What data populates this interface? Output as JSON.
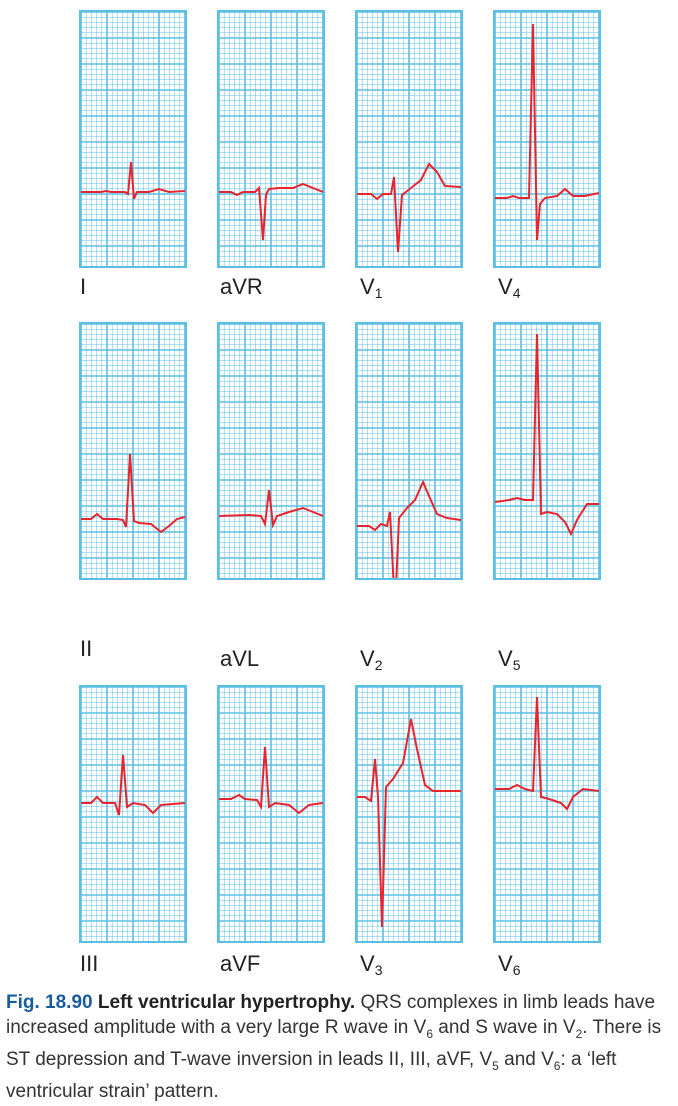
{
  "colors": {
    "grid": "#5bbfe3",
    "trace": "#e8242e",
    "figure_label": "#1a5c9e"
  },
  "leads": [
    {
      "id": "I",
      "label": "I",
      "sub": ""
    },
    {
      "id": "aVR",
      "label": "aVR",
      "sub": ""
    },
    {
      "id": "V1",
      "label": "V",
      "sub": "1"
    },
    {
      "id": "V4",
      "label": "V",
      "sub": "4"
    },
    {
      "id": "II",
      "label": "II",
      "sub": ""
    },
    {
      "id": "aVL",
      "label": "aVL",
      "sub": ""
    },
    {
      "id": "V2",
      "label": "V",
      "sub": "2"
    },
    {
      "id": "V5",
      "label": "V",
      "sub": "5"
    },
    {
      "id": "III",
      "label": "III",
      "sub": ""
    },
    {
      "id": "aVF",
      "label": "aVF",
      "sub": ""
    },
    {
      "id": "V3",
      "label": "V",
      "sub": "3"
    },
    {
      "id": "V6",
      "label": "V",
      "sub": "6"
    }
  ],
  "caption": {
    "figure": "Fig. 18.90",
    "title": "Left ventricular hypertrophy.",
    "t1": "QRS complexes in limb leads have increased amplitude with a very large R wave in V",
    "s1": "6",
    "t2": " and S wave in V",
    "s2": "2",
    "t3": ". There is ST depression and T-wave inversion in leads II, III, aVF, V",
    "s3": "5",
    "t4": " and V",
    "s4": "6",
    "t5": ": a ‘left ventricular strain’ pattern."
  }
}
